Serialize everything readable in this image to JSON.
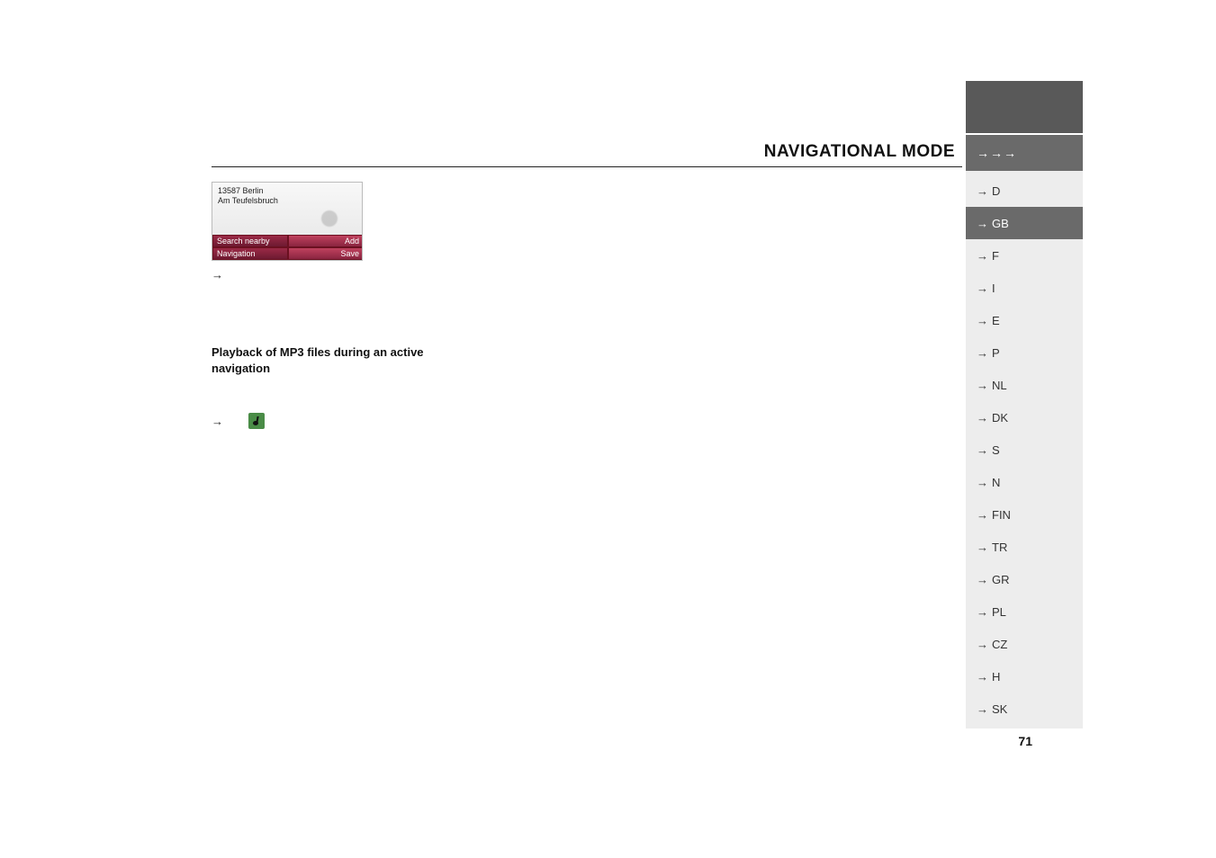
{
  "header": {
    "title": "NAVIGATIONAL MODE",
    "arrows": "→→→"
  },
  "sidebar": {
    "items": [
      {
        "code": "D",
        "active": false
      },
      {
        "code": "GB",
        "active": true
      },
      {
        "code": "F",
        "active": false
      },
      {
        "code": "I",
        "active": false
      },
      {
        "code": "E",
        "active": false
      },
      {
        "code": "P",
        "active": false
      },
      {
        "code": "NL",
        "active": false
      },
      {
        "code": "DK",
        "active": false
      },
      {
        "code": "S",
        "active": false
      },
      {
        "code": "N",
        "active": false
      },
      {
        "code": "FIN",
        "active": false
      },
      {
        "code": "TR",
        "active": false
      },
      {
        "code": "GR",
        "active": false
      },
      {
        "code": "PL",
        "active": false
      },
      {
        "code": "CZ",
        "active": false
      },
      {
        "code": "H",
        "active": false
      },
      {
        "code": "SK",
        "active": false
      }
    ],
    "arrow": "→",
    "active_bg": "#6a6a6a",
    "inactive_bg": "#ededed",
    "active_fg": "#ffffff",
    "inactive_fg": "#333333"
  },
  "device": {
    "address_line1": "13587 Berlin",
    "address_line2": "Am Teufelsbruch",
    "buttons": {
      "search_nearby": "Search nearby",
      "add": "Add",
      "navigation": "Navigation",
      "save": "Save"
    },
    "button_bg_left": "#8a2540",
    "button_bg_right": "#c0415e"
  },
  "content": {
    "arrow_only": "→",
    "section_title": "Playback of MP3 files during an active navigation",
    "playback_arrow": "→"
  },
  "page_number": "71",
  "colors": {
    "page_bg": "#ffffff",
    "topblock": "#595959",
    "header_line": "#222222",
    "mp3_icon_bg": "#4a8c47"
  }
}
